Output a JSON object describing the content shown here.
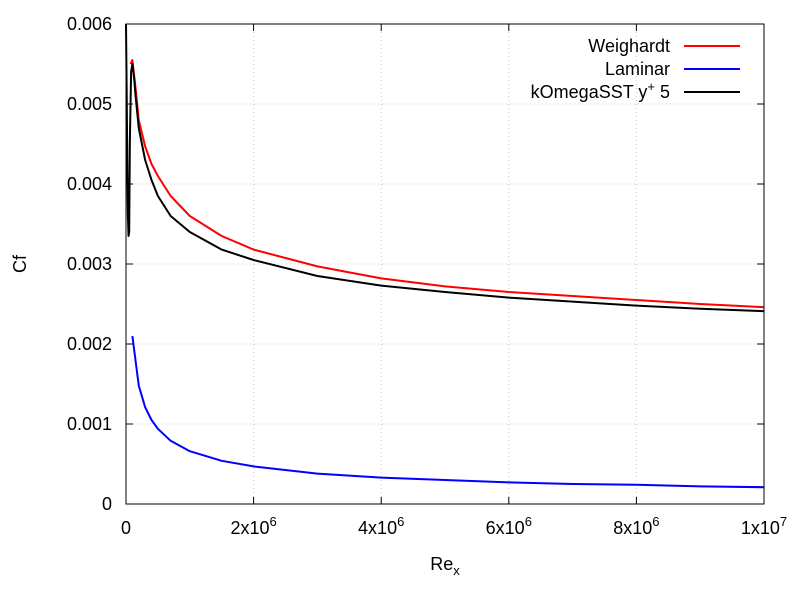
{
  "chart_data": {
    "type": "line",
    "xlabel": "Re",
    "xlabel_sub": "x",
    "ylabel": "Cf",
    "xlim": [
      0,
      10000000
    ],
    "ylim": [
      0,
      0.006
    ],
    "grid": true,
    "legend_position": "top-right",
    "x_ticks": [
      {
        "value": 0,
        "base": "0",
        "exp": ""
      },
      {
        "value": 2000000,
        "base": "2x10",
        "exp": "6"
      },
      {
        "value": 4000000,
        "base": "4x10",
        "exp": "6"
      },
      {
        "value": 6000000,
        "base": "6x10",
        "exp": "6"
      },
      {
        "value": 8000000,
        "base": "8x10",
        "exp": "6"
      },
      {
        "value": 10000000,
        "base": "1x10",
        "exp": "7"
      }
    ],
    "y_ticks": [
      {
        "value": 0,
        "label": "0"
      },
      {
        "value": 0.001,
        "label": "0.001"
      },
      {
        "value": 0.002,
        "label": "0.002"
      },
      {
        "value": 0.003,
        "label": "0.003"
      },
      {
        "value": 0.004,
        "label": "0.004"
      },
      {
        "value": 0.005,
        "label": "0.005"
      },
      {
        "value": 0.006,
        "label": "0.006"
      }
    ],
    "series": [
      {
        "name": "Weighardt",
        "name_sup": "",
        "name_tail": "",
        "color": "#ff0000",
        "x": [
          70000,
          100000,
          150000,
          200000,
          300000,
          400000,
          500000,
          700000,
          1000000,
          1500000,
          2000000,
          3000000,
          4000000,
          5000000,
          6000000,
          7000000,
          8000000,
          9000000,
          10000000
        ],
        "y": [
          0.0055,
          0.00555,
          0.0052,
          0.0048,
          0.00447,
          0.00425,
          0.0041,
          0.00385,
          0.0036,
          0.00335,
          0.00318,
          0.00297,
          0.00282,
          0.00272,
          0.00265,
          0.0026,
          0.00255,
          0.0025,
          0.00246
        ]
      },
      {
        "name": "Laminar",
        "name_sup": "",
        "name_tail": "",
        "color": "#0000ff",
        "x": [
          100000,
          200000,
          300000,
          400000,
          500000,
          700000,
          1000000,
          1500000,
          2000000,
          3000000,
          4000000,
          5000000,
          6000000,
          7000000,
          8000000,
          9000000,
          10000000
        ],
        "y": [
          0.0021,
          0.00148,
          0.00121,
          0.00105,
          0.00094,
          0.00079,
          0.00066,
          0.00054,
          0.00047,
          0.00038,
          0.00033,
          0.0003,
          0.00027,
          0.00025,
          0.00024,
          0.00022,
          0.00021
        ]
      },
      {
        "name": "kOmegaSST y",
        "name_sup": "+",
        "name_tail": " 5",
        "color": "#000000",
        "x": [
          0,
          10000,
          20000,
          30000,
          40000,
          50000,
          60000,
          80000,
          100000,
          130000,
          150000,
          200000,
          300000,
          400000,
          500000,
          700000,
          1000000,
          1500000,
          2000000,
          3000000,
          4000000,
          5000000,
          6000000,
          7000000,
          8000000,
          9000000,
          10000000
        ],
        "y": [
          0.006,
          0.0052,
          0.0043,
          0.0036,
          0.00335,
          0.0034,
          0.0045,
          0.0054,
          0.0055,
          0.0053,
          0.0051,
          0.0047,
          0.0043,
          0.00405,
          0.00385,
          0.0036,
          0.0034,
          0.00318,
          0.00305,
          0.00285,
          0.00273,
          0.00265,
          0.00258,
          0.00253,
          0.00248,
          0.00244,
          0.00241
        ]
      }
    ]
  }
}
